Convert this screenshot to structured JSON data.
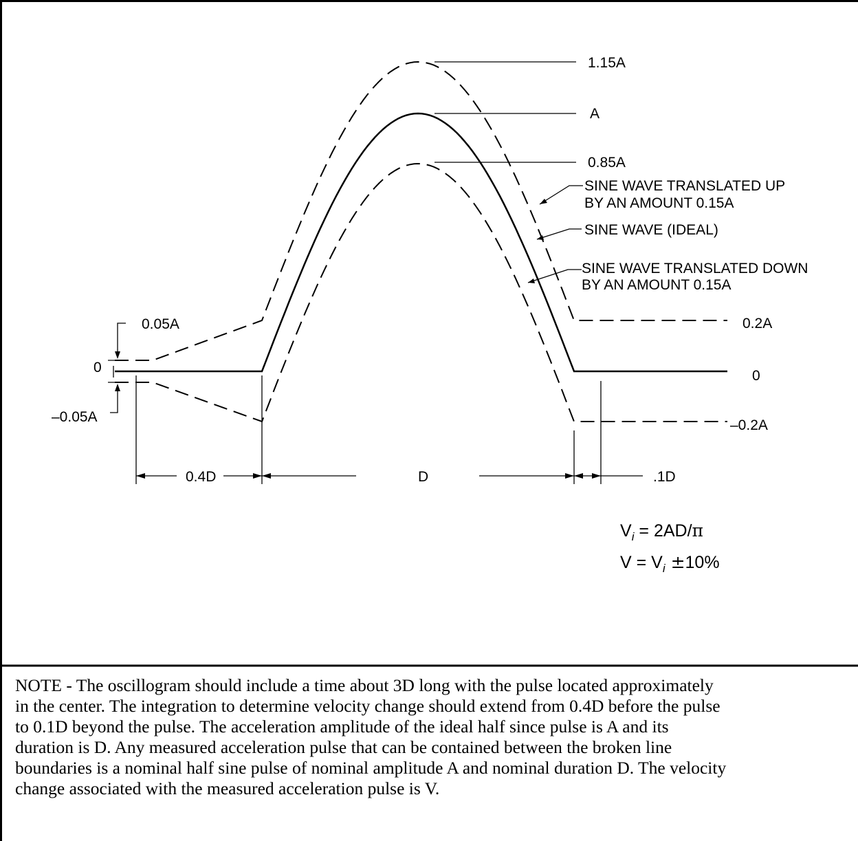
{
  "labels": {
    "top_115a": "1.15A",
    "top_a": "A",
    "top_085a": "0.85A",
    "up_line1": "SINE WAVE TRANSLATED UP",
    "up_line2": "BY AN AMOUNT 0.15A",
    "ideal": "SINE WAVE (IDEAL)",
    "down_line1": "SINE WAVE TRANSLATED DOWN",
    "down_line2": "BY AN AMOUNT 0.15A",
    "right_02a": "0.2A",
    "right_0": "0",
    "right_neg02a": "–0.2A",
    "left_005a": "0.05A",
    "left_0": "0",
    "left_neg005a": "–0.05A",
    "dim_04d": "0.4D",
    "dim_d": "D",
    "dim_01d": ".1D"
  },
  "formula": {
    "line1_v": "V",
    "line1_sub": "i",
    "line1_rest": " = 2AD/",
    "line1_pi": "π",
    "line2_v": "V = V",
    "line2_sub": "i",
    "line2_pm": " ±",
    "line2_pct": "10%"
  },
  "note": {
    "line1": "NOTE -  The oscillogram should include a time about 3D long with the pulse located approximately",
    "line2": "in the center.  The integration to determine velocity change should extend from 0.4D before the pulse",
    "line3": "to 0.1D beyond the pulse.  The acceleration amplitude of the ideal half since pulse is A and its",
    "line4": "duration is D.  Any measured acceleration pulse that can be contained between the broken line",
    "line5": "boundaries is a nominal half sine pulse of nominal amplitude A and nominal duration D.  The velocity",
    "line6": "change associated with the measured acceleration pulse is V."
  }
}
